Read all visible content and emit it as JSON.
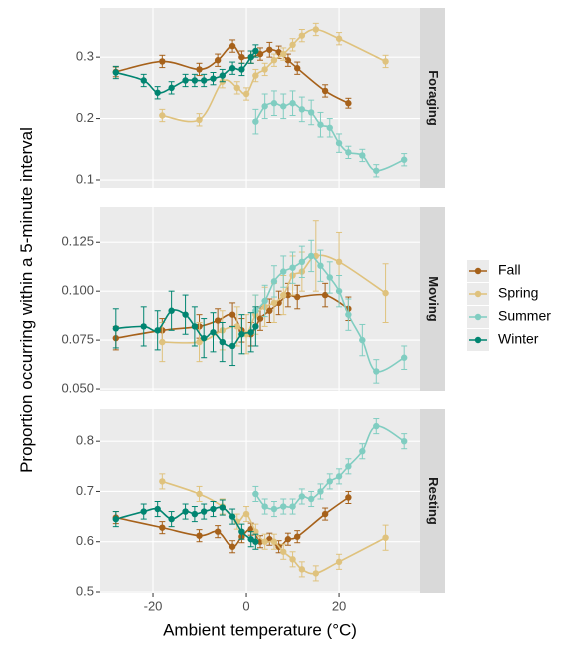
{
  "chart_data": [
    {
      "type": "scatter",
      "facet": "Foraging",
      "xlim": [
        -31.4,
        37.4
      ],
      "xticks": [
        -20,
        0,
        20
      ],
      "ylim": [
        0.087,
        0.38
      ],
      "yticks": [
        0.1,
        0.2,
        0.3
      ],
      "grid": true,
      "series": [
        {
          "name": "Fall",
          "color": "#a6611a",
          "x": [
            -28,
            -18,
            -10,
            -6,
            -3,
            -1,
            1,
            3,
            5,
            7,
            9,
            11,
            17,
            22
          ],
          "values": [
            0.276,
            0.293,
            0.28,
            0.295,
            0.318,
            0.3,
            0.3,
            0.305,
            0.312,
            0.308,
            0.295,
            0.282,
            0.245,
            0.225
          ],
          "errors": [
            0.008,
            0.01,
            0.01,
            0.01,
            0.01,
            0.01,
            0.01,
            0.01,
            0.012,
            0.01,
            0.01,
            0.01,
            0.01,
            0.008
          ]
        },
        {
          "name": "Spring",
          "color": "#dfc27d",
          "x": [
            -18,
            -10,
            -5,
            -2,
            0,
            2,
            4,
            6,
            8,
            10,
            12,
            15,
            20,
            30
          ],
          "values": [
            0.205,
            0.198,
            0.26,
            0.25,
            0.24,
            0.27,
            0.28,
            0.295,
            0.305,
            0.32,
            0.335,
            0.345,
            0.33,
            0.293
          ],
          "errors": [
            0.01,
            0.01,
            0.01,
            0.01,
            0.01,
            0.01,
            0.01,
            0.01,
            0.01,
            0.01,
            0.01,
            0.01,
            0.01,
            0.01
          ]
        },
        {
          "name": "Summer",
          "color": "#80cdc1",
          "x": [
            2,
            4,
            6,
            8,
            10,
            12,
            14,
            16,
            18,
            20,
            22,
            25,
            28,
            34
          ],
          "values": [
            0.195,
            0.22,
            0.225,
            0.22,
            0.225,
            0.215,
            0.21,
            0.19,
            0.185,
            0.16,
            0.145,
            0.14,
            0.115,
            0.133
          ],
          "errors": [
            0.02,
            0.02,
            0.02,
            0.02,
            0.02,
            0.02,
            0.02,
            0.02,
            0.015,
            0.015,
            0.01,
            0.01,
            0.01,
            0.01
          ]
        },
        {
          "name": "Winter",
          "color": "#018571",
          "x": [
            -28,
            -22,
            -19,
            -16,
            -13,
            -11,
            -9,
            -7,
            -5,
            -3,
            -1,
            1,
            2
          ],
          "values": [
            0.275,
            0.262,
            0.242,
            0.25,
            0.262,
            0.262,
            0.262,
            0.265,
            0.27,
            0.282,
            0.28,
            0.3,
            0.31
          ],
          "errors": [
            0.01,
            0.01,
            0.01,
            0.01,
            0.01,
            0.01,
            0.01,
            0.01,
            0.01,
            0.01,
            0.01,
            0.01,
            0.01
          ]
        }
      ]
    },
    {
      "type": "scatter",
      "facet": "Moving",
      "ylabel": "Proportion occurring within a 5-minute interval",
      "xlim": [
        -31.4,
        37.4
      ],
      "xticks": [
        -20,
        0,
        20
      ],
      "ylim": [
        0.049,
        0.143
      ],
      "yticks": [
        {
          "value": 0.05,
          "label": "0.050"
        },
        {
          "value": 0.075,
          "label": "0.075"
        },
        {
          "value": 0.1,
          "label": "0.100"
        },
        {
          "value": 0.125,
          "label": "0.125"
        }
      ],
      "grid": true,
      "series": [
        {
          "name": "Fall",
          "color": "#a6611a",
          "x": [
            -28,
            -18,
            -10,
            -6,
            -3,
            -1,
            1,
            3,
            5,
            7,
            9,
            11,
            17,
            22
          ],
          "values": [
            0.076,
            0.08,
            0.082,
            0.085,
            0.088,
            0.08,
            0.078,
            0.086,
            0.09,
            0.094,
            0.098,
            0.097,
            0.098,
            0.091
          ],
          "errors": [
            0.006,
            0.006,
            0.006,
            0.006,
            0.006,
            0.006,
            0.006,
            0.006,
            0.006,
            0.006,
            0.006,
            0.006,
            0.006,
            0.006
          ]
        },
        {
          "name": "Spring",
          "color": "#dfc27d",
          "x": [
            -18,
            -10,
            -5,
            -2,
            0,
            2,
            4,
            6,
            8,
            10,
            12,
            15,
            20,
            30
          ],
          "values": [
            0.074,
            0.074,
            0.08,
            0.082,
            0.078,
            0.088,
            0.092,
            0.094,
            0.098,
            0.108,
            0.11,
            0.118,
            0.115,
            0.099
          ],
          "errors": [
            0.01,
            0.01,
            0.01,
            0.01,
            0.01,
            0.01,
            0.01,
            0.01,
            0.01,
            0.01,
            0.01,
            0.018,
            0.015,
            0.015
          ]
        },
        {
          "name": "Summer",
          "color": "#80cdc1",
          "x": [
            2,
            4,
            6,
            8,
            10,
            12,
            14,
            16,
            18,
            20,
            22,
            25,
            28,
            34
          ],
          "values": [
            0.09,
            0.095,
            0.105,
            0.11,
            0.112,
            0.115,
            0.118,
            0.113,
            0.107,
            0.1,
            0.088,
            0.075,
            0.059,
            0.066
          ],
          "errors": [
            0.008,
            0.008,
            0.008,
            0.008,
            0.008,
            0.008,
            0.008,
            0.008,
            0.008,
            0.008,
            0.008,
            0.008,
            0.006,
            0.006
          ]
        },
        {
          "name": "Winter",
          "color": "#018571",
          "x": [
            -28,
            -22,
            -19,
            -16,
            -13,
            -11,
            -9,
            -7,
            -5,
            -3,
            -1,
            1,
            2
          ],
          "values": [
            0.081,
            0.082,
            0.08,
            0.09,
            0.088,
            0.082,
            0.076,
            0.079,
            0.074,
            0.072,
            0.078,
            0.079,
            0.082
          ],
          "errors": [
            0.01,
            0.01,
            0.01,
            0.01,
            0.01,
            0.01,
            0.01,
            0.01,
            0.01,
            0.01,
            0.01,
            0.01,
            0.01
          ]
        }
      ]
    },
    {
      "type": "scatter",
      "facet": "Resting",
      "xlabel": "Ambient temperature (°C)",
      "xlim": [
        -31.4,
        37.4
      ],
      "xticks": [
        -20,
        0,
        20
      ],
      "ylim": [
        0.498,
        0.864
      ],
      "yticks": [
        0.5,
        0.6,
        0.7,
        0.8
      ],
      "grid": true,
      "series": [
        {
          "name": "Fall",
          "color": "#a6611a",
          "x": [
            -28,
            -18,
            -10,
            -6,
            -3,
            -1,
            1,
            3,
            5,
            7,
            9,
            11,
            17,
            22
          ],
          "values": [
            0.648,
            0.628,
            0.612,
            0.62,
            0.59,
            0.61,
            0.625,
            0.6,
            0.605,
            0.59,
            0.605,
            0.61,
            0.655,
            0.688
          ],
          "errors": [
            0.012,
            0.012,
            0.012,
            0.012,
            0.012,
            0.012,
            0.012,
            0.012,
            0.012,
            0.012,
            0.012,
            0.012,
            0.012,
            0.012
          ]
        },
        {
          "name": "Spring",
          "color": "#dfc27d",
          "x": [
            -18,
            -10,
            -5,
            -2,
            0,
            2,
            4,
            6,
            8,
            10,
            12,
            15,
            20,
            30
          ],
          "values": [
            0.72,
            0.695,
            0.67,
            0.64,
            0.655,
            0.62,
            0.6,
            0.6,
            0.58,
            0.565,
            0.545,
            0.537,
            0.56,
            0.608
          ],
          "errors": [
            0.015,
            0.015,
            0.015,
            0.015,
            0.015,
            0.015,
            0.015,
            0.015,
            0.015,
            0.015,
            0.015,
            0.015,
            0.015,
            0.025
          ]
        },
        {
          "name": "Summer",
          "color": "#80cdc1",
          "x": [
            2,
            4,
            6,
            8,
            10,
            12,
            14,
            16,
            18,
            20,
            22,
            25,
            28,
            34
          ],
          "values": [
            0.695,
            0.67,
            0.665,
            0.67,
            0.67,
            0.69,
            0.685,
            0.7,
            0.72,
            0.73,
            0.75,
            0.78,
            0.83,
            0.8
          ],
          "errors": [
            0.015,
            0.015,
            0.015,
            0.015,
            0.015,
            0.015,
            0.015,
            0.015,
            0.015,
            0.015,
            0.015,
            0.015,
            0.015,
            0.015
          ]
        },
        {
          "name": "Winter",
          "color": "#018571",
          "x": [
            -28,
            -22,
            -19,
            -16,
            -13,
            -11,
            -9,
            -7,
            -5,
            -3,
            -1,
            1,
            2
          ],
          "values": [
            0.645,
            0.66,
            0.665,
            0.645,
            0.66,
            0.655,
            0.66,
            0.665,
            0.668,
            0.65,
            0.62,
            0.605,
            0.6
          ],
          "errors": [
            0.015,
            0.015,
            0.015,
            0.015,
            0.015,
            0.015,
            0.015,
            0.015,
            0.015,
            0.015,
            0.015,
            0.015,
            0.015
          ]
        }
      ]
    }
  ]
}
